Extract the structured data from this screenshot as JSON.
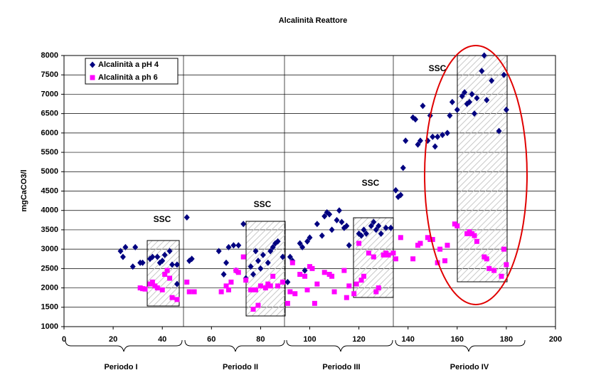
{
  "chart_data": {
    "type": "scatter",
    "title": "Alcalinità Reattore",
    "y_label": "mgCaCO3/l",
    "xlim": [
      0,
      200
    ],
    "xticks": [
      0,
      20,
      40,
      60,
      80,
      100,
      120,
      140,
      160,
      180,
      200
    ],
    "ylim": [
      1000,
      8000
    ],
    "yticks": [
      1000,
      1500,
      2000,
      2500,
      3000,
      3500,
      4000,
      4500,
      5000,
      5500,
      6000,
      6500,
      7000,
      7500,
      8000
    ],
    "grid": true,
    "legend": "top-left",
    "annotations": [
      "SSC",
      "SSC",
      "SSC",
      "SSC"
    ],
    "periods": [
      "Periodo I",
      "Periodo  II",
      "Periodo III",
      "Periodo IV"
    ],
    "series": [
      {
        "name": "Alcalinità a pH 4",
        "color": "#000080",
        "marker": "diamond",
        "x": [
          23,
          24,
          25,
          28,
          29,
          31,
          32,
          35,
          36,
          38,
          39,
          40,
          41,
          43,
          44,
          46,
          46,
          50,
          51,
          52,
          63,
          65,
          66,
          67,
          69,
          70,
          71,
          73,
          74,
          76,
          77,
          78,
          79,
          80,
          81,
          83,
          84,
          85,
          86,
          87,
          89,
          91,
          92,
          93,
          96,
          97,
          98,
          99,
          100,
          103,
          105,
          106,
          107,
          108,
          109,
          111,
          112,
          113,
          114,
          115,
          116,
          120,
          121,
          122,
          123,
          125,
          126,
          127,
          128,
          129,
          131,
          133,
          135,
          136,
          137,
          138,
          139,
          142,
          143,
          144,
          145,
          146,
          148,
          149,
          150,
          151,
          152,
          154,
          156,
          157,
          158,
          160,
          162,
          163,
          164,
          165,
          166,
          167,
          168,
          170,
          171,
          172,
          174,
          177,
          179,
          180
        ],
        "values": [
          2950,
          2800,
          3050,
          2550,
          3050,
          2650,
          2650,
          2750,
          2800,
          2800,
          2650,
          2700,
          2850,
          2950,
          2600,
          2600,
          2100,
          3820,
          2700,
          2750,
          2950,
          2350,
          2650,
          3050,
          3100,
          2450,
          3100,
          3650,
          2250,
          2550,
          2350,
          2950,
          2700,
          2500,
          2850,
          2650,
          2950,
          3050,
          3150,
          3200,
          2800,
          2150,
          2800,
          2700,
          3150,
          3050,
          2450,
          3200,
          3300,
          3650,
          3350,
          3850,
          3950,
          3900,
          3500,
          3750,
          4000,
          3700,
          3550,
          3600,
          3100,
          3400,
          3350,
          3500,
          3400,
          3600,
          3700,
          3500,
          3600,
          3400,
          3550,
          3550,
          4520,
          4350,
          4400,
          5100,
          5800,
          6400,
          6350,
          5700,
          5800,
          6700,
          5800,
          6450,
          5900,
          5650,
          5900,
          5950,
          6000,
          6450,
          6800,
          6600,
          6950,
          7050,
          6750,
          6800,
          7000,
          6500,
          6900,
          7600,
          8000,
          6850,
          7350,
          6050,
          7500,
          6600
        ]
      },
      {
        "name": "Alcalinità a ph 6",
        "color": "#ff00ff",
        "marker": "square",
        "x": [
          31,
          32,
          33,
          35,
          36,
          37,
          38,
          40,
          41,
          42,
          43,
          44,
          46,
          50,
          51,
          53,
          64,
          66,
          67,
          68,
          70,
          71,
          73,
          74,
          76,
          77,
          78,
          79,
          80,
          82,
          83,
          84,
          85,
          87,
          89,
          91,
          92,
          93,
          94,
          96,
          98,
          99,
          100,
          101,
          102,
          103,
          106,
          108,
          109,
          110,
          114,
          115,
          116,
          118,
          119,
          120,
          121,
          122,
          124,
          126,
          127,
          128,
          130,
          131,
          132,
          134,
          135,
          137,
          142,
          144,
          145,
          148,
          149,
          150,
          152,
          153,
          155,
          156,
          159,
          160,
          164,
          165,
          166,
          167,
          168,
          171,
          172,
          173,
          175,
          178,
          179,
          180
        ],
        "values": [
          2000,
          1980,
          1970,
          2100,
          2150,
          2050,
          2000,
          1950,
          2350,
          2450,
          2250,
          1750,
          1700,
          2150,
          1900,
          1900,
          1900,
          2050,
          1950,
          2150,
          2450,
          2400,
          2800,
          2200,
          1950,
          1450,
          1950,
          1550,
          2050,
          2000,
          2100,
          2050,
          2300,
          2050,
          2150,
          1600,
          1900,
          2650,
          1850,
          2350,
          2300,
          1950,
          2550,
          2500,
          1600,
          2100,
          2400,
          2350,
          2300,
          1900,
          2450,
          1750,
          2050,
          1850,
          2100,
          3150,
          2200,
          2300,
          2900,
          2800,
          1900,
          2000,
          2850,
          2900,
          2850,
          2900,
          2750,
          3300,
          2750,
          3100,
          3150,
          3300,
          3250,
          3250,
          2650,
          3000,
          2700,
          3100,
          3650,
          3600,
          3400,
          3450,
          3400,
          3350,
          3200,
          2800,
          2750,
          2500,
          2450,
          2300,
          3000,
          2600
        ]
      }
    ]
  }
}
